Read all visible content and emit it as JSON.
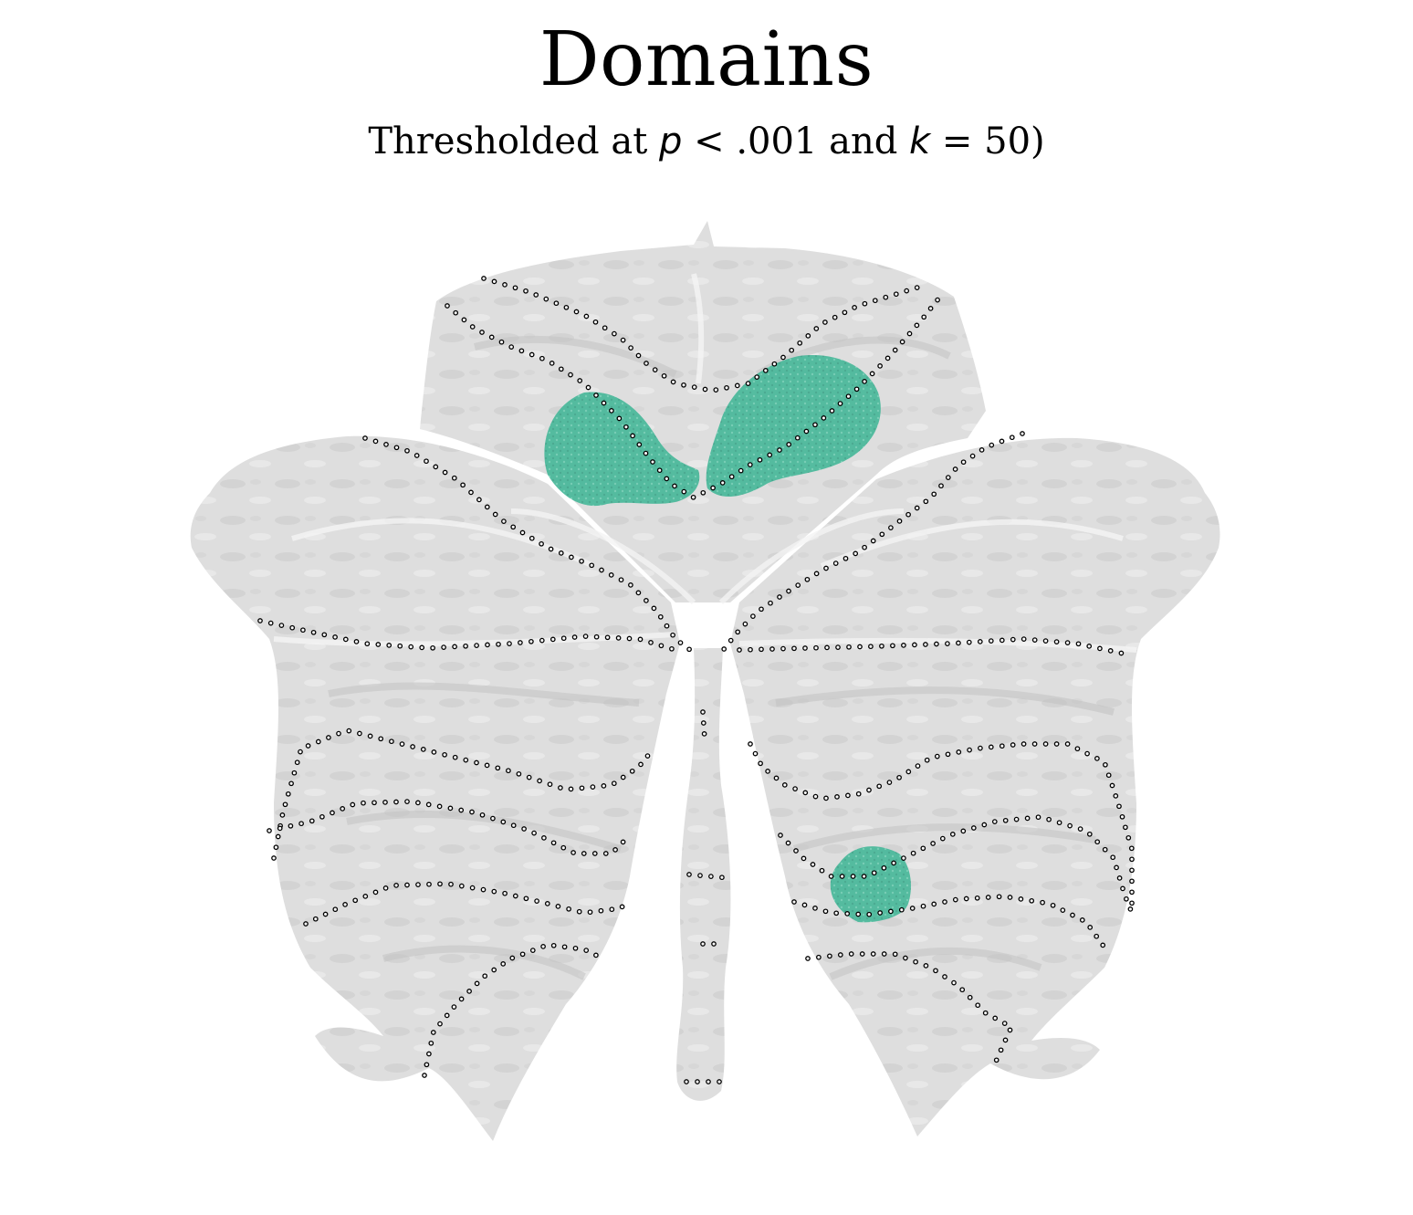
{
  "figure": {
    "title": "Domains",
    "subtitle": {
      "prefix": "Thresholded at ",
      "p_symbol": "p",
      "p_text": " < .001 and ",
      "k_symbol": "k",
      "k_text": " = 50)"
    }
  },
  "colors": {
    "background": "#ffffff",
    "surface": "#dcdcdc",
    "surface_shade": "#c8c8c8",
    "surface_highlight": "#f2f2f2",
    "activation": "#48b89a",
    "boundary_dots": "#000000"
  },
  "legend": null,
  "clusters": [
    {
      "name": "superior-cluster",
      "hemisphere": "bilateral"
    },
    {
      "name": "inferior-right-cluster",
      "hemisphere": "right"
    }
  ]
}
